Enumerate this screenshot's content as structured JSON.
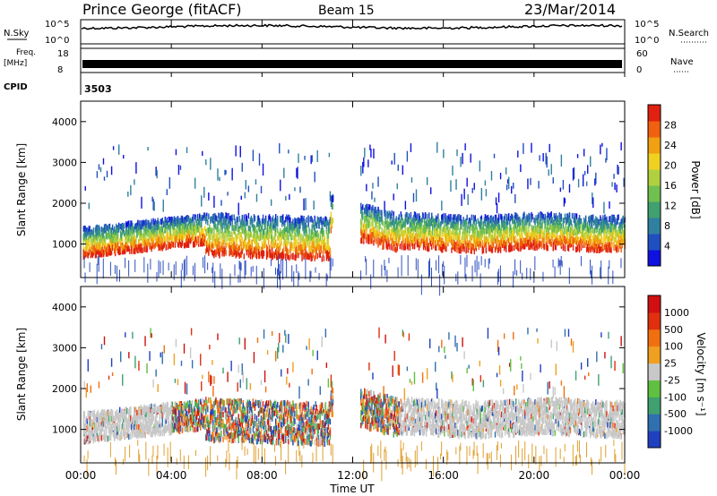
{
  "header": {
    "station": "Prince George (fitACF)",
    "beam": "Beam 15",
    "date": "23/Mar/2014"
  },
  "top_panel": {
    "nsky_label": "N.Sky",
    "nsearch_label": "N.Search",
    "nsky_ticks": [
      "10^5",
      "10^0"
    ],
    "nsearch_ticks": [
      "10^5",
      "10^0"
    ],
    "freq_label": "Freq.",
    "freq_unit": "[MHz]",
    "freq_ticks": [
      "18",
      "8"
    ],
    "nave_label": "Nave",
    "nave_ticks": [
      "60",
      "0"
    ],
    "cpid_label": "CPID",
    "cpid_value": "3503"
  },
  "chart_data": [
    {
      "type": "heatmap",
      "name": "power",
      "ylabel": "Slant Range [km]",
      "xlabel": "",
      "ylim": [
        180,
        4500
      ],
      "yticks": [
        "1000",
        "2000",
        "3000",
        "4000"
      ],
      "x_range_hours": [
        0,
        24
      ],
      "colorbar": {
        "label": "Power [dB]",
        "ticks": [
          "28",
          "24",
          "20",
          "16",
          "12",
          "8",
          "4"
        ],
        "colors": [
          "#1010e0",
          "#2050c0",
          "#3080a0",
          "#40a070",
          "#70c050",
          "#b0d040",
          "#f0d020",
          "#f0a010",
          "#f06010",
          "#e02010"
        ]
      }
    },
    {
      "type": "heatmap",
      "name": "velocity",
      "ylabel": "Slant Range [km]",
      "xlabel": "Time UT",
      "ylim": [
        180,
        4500
      ],
      "yticks": [
        "1000",
        "2000",
        "3000",
        "4000"
      ],
      "x_ticks": [
        "00:00",
        "04:00",
        "08:00",
        "12:00",
        "16:00",
        "20:00",
        "00:00"
      ],
      "colorbar": {
        "label": "Velocity [m s⁻¹]",
        "ticks": [
          "1000",
          "500",
          "100",
          "25",
          "-25",
          "-100",
          "-500",
          "-1000"
        ],
        "colors": [
          "#2040c0",
          "#3070b0",
          "#40a070",
          "#60c040",
          "#c8c8c8",
          "#f0a020",
          "#f07010",
          "#e03010",
          "#d01010"
        ]
      }
    }
  ]
}
